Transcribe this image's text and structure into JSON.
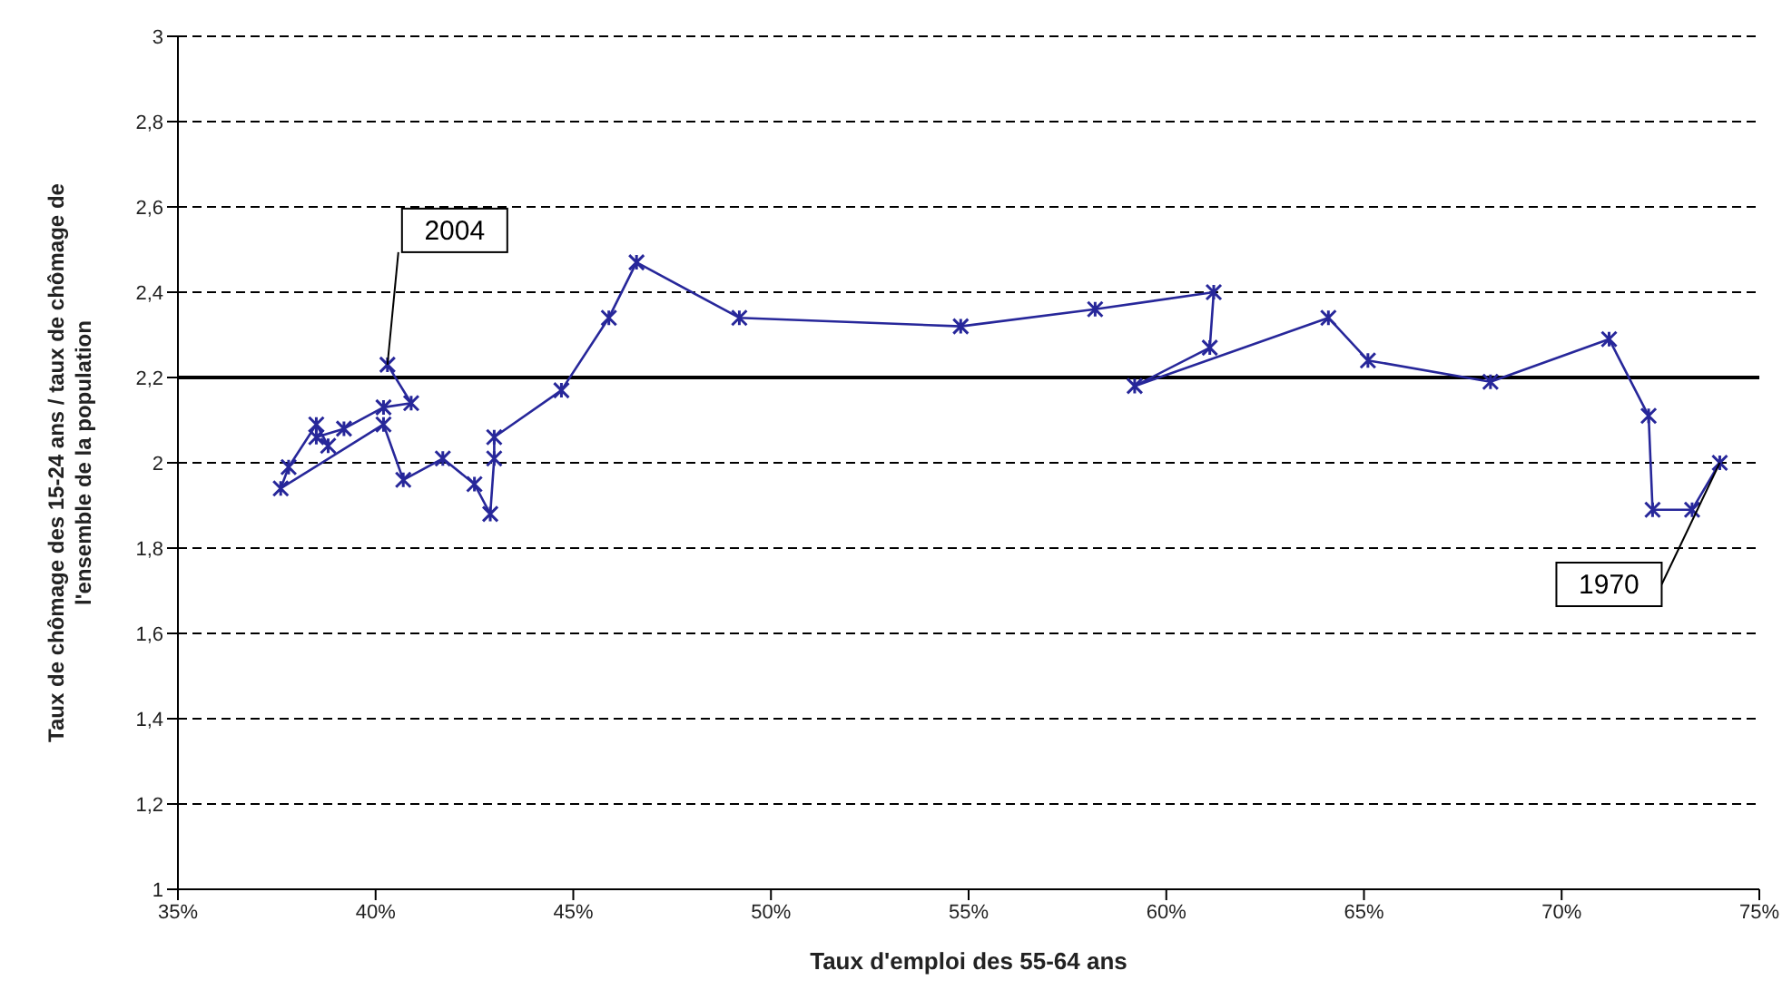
{
  "chart_data": {
    "type": "line",
    "xlabel": "Taux d'emploi des 55-64 ans",
    "ylabel": "Taux de chômage des 15-24 ans / taux de chômage de l'ensemble de la population",
    "series": [
      {
        "color": "#27279a",
        "x": [
          74.0,
          73.3,
          72.3,
          72.2,
          71.2,
          68.2,
          65.1,
          64.1,
          59.2,
          61.1,
          61.2,
          58.2,
          54.8,
          49.2,
          46.6,
          45.9,
          44.7,
          43.0,
          43.0,
          42.9,
          42.5,
          41.7,
          40.7,
          40.2,
          37.6,
          37.8,
          38.5,
          38.8,
          38.5,
          39.2,
          40.2,
          40.9,
          40.3
        ],
        "values": [
          2.0,
          1.89,
          1.89,
          2.11,
          2.29,
          2.19,
          2.24,
          2.34,
          2.18,
          2.27,
          2.4,
          2.36,
          2.32,
          2.34,
          2.47,
          2.34,
          2.17,
          2.06,
          2.01,
          1.88,
          1.95,
          2.01,
          1.96,
          2.09,
          1.94,
          1.99,
          2.09,
          2.04,
          2.06,
          2.08,
          2.13,
          2.14,
          2.23
        ]
      }
    ],
    "xlim": [
      35,
      75
    ],
    "xticks": [
      {
        "value": 35,
        "label": "35%"
      },
      {
        "value": 40,
        "label": "40%"
      },
      {
        "value": 45,
        "label": "45%"
      },
      {
        "value": 50,
        "label": "50%"
      },
      {
        "value": 55,
        "label": "55%"
      },
      {
        "value": 60,
        "label": "60%"
      },
      {
        "value": 65,
        "label": "65%"
      },
      {
        "value": 70,
        "label": "70%"
      },
      {
        "value": 75,
        "label": "75%"
      }
    ],
    "ylim": [
      1,
      3
    ],
    "yticks": [
      1,
      {
        "value": 1.2,
        "label": "1,2"
      },
      {
        "value": 1.4,
        "label": "1,4"
      },
      {
        "value": 1.6,
        "label": "1,6"
      },
      {
        "value": 1.8,
        "label": "1,8"
      },
      2,
      {
        "value": 2.2,
        "label": "2,2"
      },
      {
        "value": 2.4,
        "label": "2,4"
      },
      {
        "value": 2.6,
        "label": "2,6"
      },
      {
        "value": 2.8,
        "label": "2,8"
      },
      3
    ],
    "ref_lines": [
      {
        "axis": "y",
        "value": 2.2,
        "color": "#000000",
        "line_style": "solid"
      }
    ],
    "annotations": [
      {
        "text": "2004",
        "x": 40.3,
        "y": 2.23
      },
      {
        "text": "1970",
        "x": 74.0,
        "y": 2.0
      }
    ],
    "grid": "y",
    "marker": "cross",
    "line_style": "solid",
    "legend": false
  }
}
